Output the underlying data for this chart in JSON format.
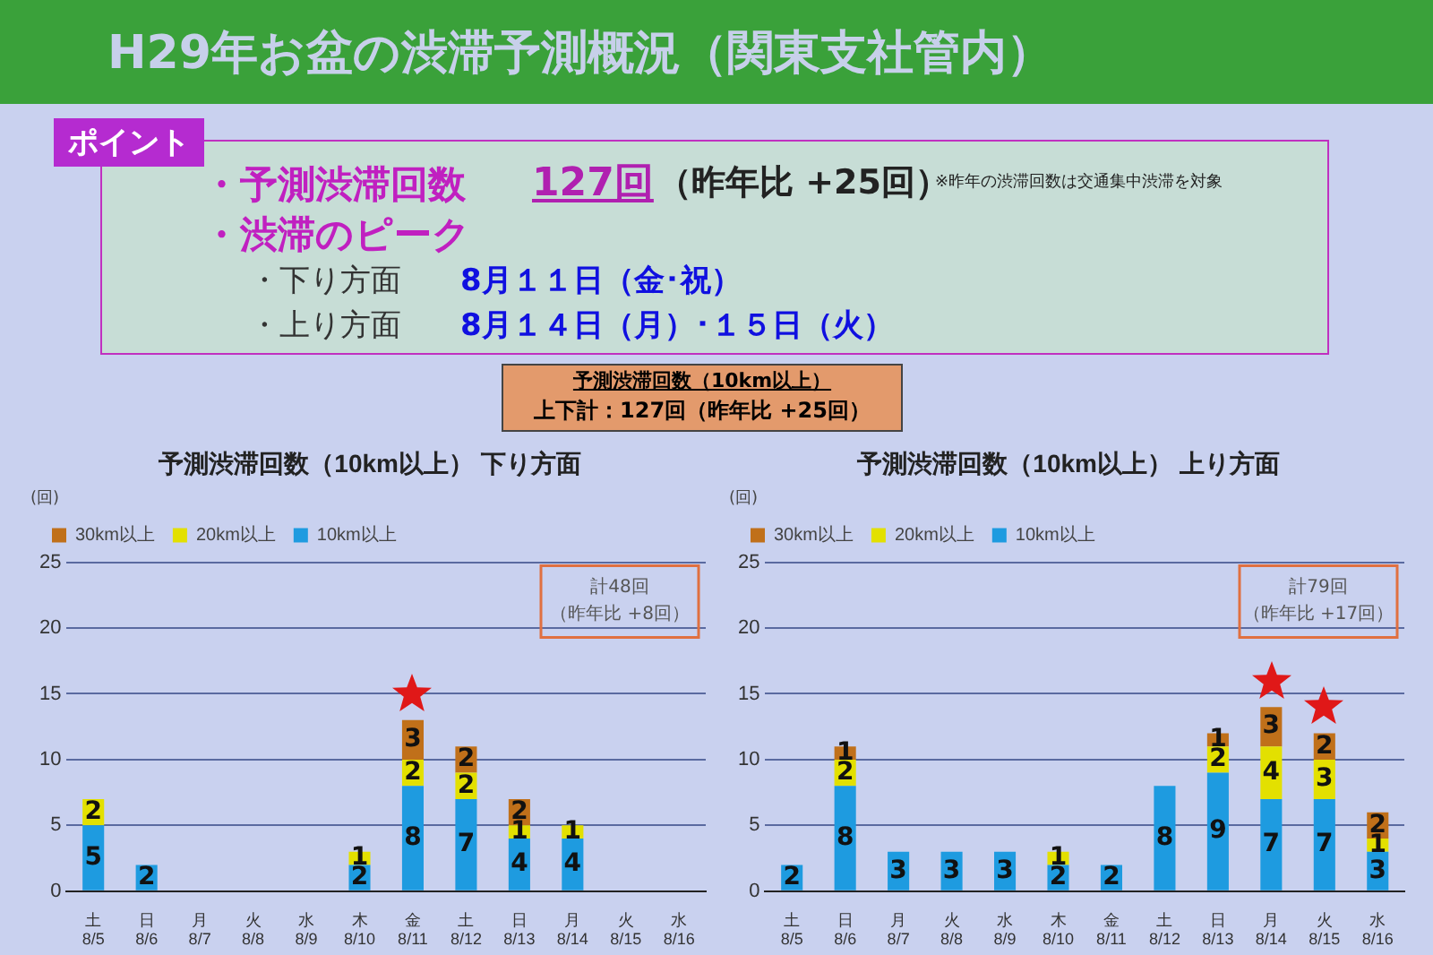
{
  "chart_data": [
    {
      "type": "bar",
      "stacked": true,
      "title": "予測渋滞回数（10km以上） 下り方面",
      "ylabel": "(回)",
      "categories": [
        "土\n8/5",
        "日\n8/6",
        "月\n8/7",
        "火\n8/8",
        "水\n8/9",
        "木\n8/10",
        "金\n8/11",
        "土\n8/12",
        "日\n8/13",
        "月\n8/14",
        "火\n8/15",
        "水\n8/16"
      ],
      "series": [
        {
          "name": "10km以上",
          "color": "#1e9be0",
          "values": [
            5,
            2,
            null,
            null,
            null,
            2,
            8,
            7,
            4,
            4,
            null,
            null
          ]
        },
        {
          "name": "20km以上",
          "color": "#e3e000",
          "values": [
            2,
            null,
            null,
            null,
            null,
            1,
            2,
            2,
            1,
            1,
            null,
            null
          ]
        },
        {
          "name": "30km以上",
          "color": "#c0701a",
          "values": [
            null,
            null,
            null,
            null,
            null,
            null,
            3,
            2,
            2,
            null,
            null,
            null
          ]
        }
      ],
      "ylim": [
        0,
        25
      ],
      "yticks": [
        0,
        5,
        10,
        15,
        20,
        25
      ],
      "grid": "y",
      "legend": "top left",
      "data_labels": true,
      "annotations": [
        "H29年お盆の渋滞予測概況（関東支社管内）",
        "ポイント",
        "・予測渋滞回数",
        "127回",
        "（昨年比 +25回）",
        "※昨年の渋滞回数は交通集中渋滞を対象",
        "・渋滞のピーク",
        "・下り方面",
        "8月１１日（金･祝）",
        "・上り方面",
        "8月１４日（月）･１５日（火）",
        "予測渋滞回数（10km以上）",
        "上下計：127回（昨年比 +25回）",
        "計48回",
        "（昨年比 +8回）"
      ]
    },
    {
      "type": "bar",
      "stacked": true,
      "title": "予測渋滞回数（10km以上） 上り方面",
      "ylabel": "(回)",
      "categories": [
        "土\n8/5",
        "日\n8/6",
        "月\n8/7",
        "火\n8/8",
        "水\n8/9",
        "木\n8/10",
        "金\n8/11",
        "土\n8/12",
        "日\n8/13",
        "月\n8/14",
        "火\n8/15",
        "水\n8/16"
      ],
      "series": [
        {
          "name": "10km以上",
          "color": "#1e9be0",
          "values": [
            2,
            8,
            3,
            3,
            3,
            2,
            2,
            8,
            9,
            7,
            7,
            3
          ]
        },
        {
          "name": "20km以上",
          "color": "#e3e000",
          "values": [
            null,
            2,
            null,
            null,
            null,
            1,
            null,
            null,
            2,
            4,
            3,
            1
          ]
        },
        {
          "name": "30km以上",
          "color": "#c0701a",
          "values": [
            null,
            1,
            null,
            null,
            null,
            null,
            null,
            null,
            1,
            3,
            2,
            2
          ]
        }
      ],
      "ylim": [
        0,
        25
      ],
      "yticks": [
        0,
        5,
        10,
        15,
        20,
        25
      ],
      "grid": "y",
      "legend": "top left",
      "data_labels": true,
      "annotations": [
        "計79回",
        "（昨年比 +17回）"
      ]
    }
  ]
}
